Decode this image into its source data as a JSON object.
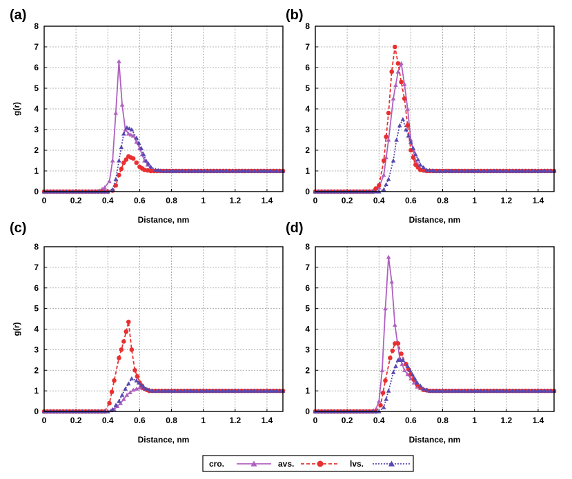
{
  "chart_data": [
    {
      "type": "line",
      "panel_label": "(a)",
      "xlabel": "Distance, nm",
      "ylabel": "g(r)",
      "xlim": [
        0,
        1.5
      ],
      "ylim": [
        0,
        8
      ],
      "xticks": [
        "0",
        "0.2",
        "0.4",
        "0.6",
        "0.8",
        "1",
        "1.2",
        "1.4"
      ],
      "yticks": [
        "0",
        "1",
        "2",
        "3",
        "4",
        "5",
        "6",
        "7",
        "8"
      ],
      "grid": true,
      "series": [
        {
          "name": "cro.",
          "color": "#b060c0",
          "marker": "triangle",
          "dash": "solid",
          "points": [
            [
              0,
              0
            ],
            [
              0.3,
              0
            ],
            [
              0.35,
              0.05
            ],
            [
              0.38,
              0.2
            ],
            [
              0.41,
              0.5
            ],
            [
              0.43,
              1.5
            ],
            [
              0.45,
              3.8
            ],
            [
              0.47,
              6.3
            ],
            [
              0.49,
              4.2
            ],
            [
              0.51,
              3.0
            ],
            [
              0.53,
              2.8
            ],
            [
              0.56,
              2.7
            ],
            [
              0.6,
              2.1
            ],
            [
              0.63,
              1.5
            ],
            [
              0.67,
              1.1
            ],
            [
              0.7,
              1.0
            ],
            [
              1.5,
              1.0
            ]
          ]
        },
        {
          "name": "avs.",
          "color": "#e83030",
          "marker": "circle",
          "dash": "dashed",
          "points": [
            [
              0,
              0
            ],
            [
              0.4,
              0
            ],
            [
              0.43,
              0.05
            ],
            [
              0.45,
              0.3
            ],
            [
              0.47,
              0.8
            ],
            [
              0.5,
              1.4
            ],
            [
              0.53,
              1.7
            ],
            [
              0.56,
              1.6
            ],
            [
              0.6,
              1.2
            ],
            [
              0.63,
              1.05
            ],
            [
              0.67,
              1.0
            ],
            [
              1.5,
              1.0
            ]
          ]
        },
        {
          "name": "lvs.",
          "color": "#5848b0",
          "marker": "triangle",
          "dash": "dotted",
          "points": [
            [
              0,
              0
            ],
            [
              0.4,
              0
            ],
            [
              0.43,
              0.1
            ],
            [
              0.45,
              0.6
            ],
            [
              0.47,
              1.5
            ],
            [
              0.5,
              2.8
            ],
            [
              0.52,
              3.1
            ],
            [
              0.55,
              3.0
            ],
            [
              0.58,
              2.6
            ],
            [
              0.61,
              2.1
            ],
            [
              0.64,
              1.5
            ],
            [
              0.67,
              1.2
            ],
            [
              0.7,
              1.05
            ],
            [
              0.75,
              1.0
            ],
            [
              1.5,
              1.0
            ]
          ]
        }
      ]
    },
    {
      "type": "line",
      "panel_label": "(b)",
      "xlabel": "Distance, nm",
      "ylabel": "",
      "xlim": [
        0,
        1.5
      ],
      "ylim": [
        0,
        8
      ],
      "xticks": [
        "0",
        "0.2",
        "0.4",
        "0.6",
        "0.8",
        "1",
        "1.2",
        "1.4"
      ],
      "yticks": [
        "0",
        "1",
        "2",
        "3",
        "4",
        "5",
        "6",
        "7",
        "8"
      ],
      "grid": true,
      "series": [
        {
          "name": "cro.",
          "color": "#b060c0",
          "marker": "triangle",
          "dash": "solid",
          "points": [
            [
              0,
              0
            ],
            [
              0.35,
              0
            ],
            [
              0.4,
              0.2
            ],
            [
              0.43,
              0.8
            ],
            [
              0.46,
              2.5
            ],
            [
              0.49,
              4.5
            ],
            [
              0.52,
              5.8
            ],
            [
              0.54,
              6.2
            ],
            [
              0.56,
              5.2
            ],
            [
              0.58,
              4.0
            ],
            [
              0.6,
              2.5
            ],
            [
              0.63,
              1.5
            ],
            [
              0.66,
              1.1
            ],
            [
              0.7,
              1.0
            ],
            [
              1.5,
              1.0
            ]
          ]
        },
        {
          "name": "avs.",
          "color": "#e83030",
          "marker": "circle",
          "dash": "dashed",
          "points": [
            [
              0,
              0
            ],
            [
              0.36,
              0
            ],
            [
              0.4,
              0.3
            ],
            [
              0.43,
              1.5
            ],
            [
              0.46,
              3.8
            ],
            [
              0.48,
              5.8
            ],
            [
              0.5,
              7.0
            ],
            [
              0.52,
              6.2
            ],
            [
              0.54,
              5.3
            ],
            [
              0.56,
              4.5
            ],
            [
              0.58,
              3.2
            ],
            [
              0.6,
              2.0
            ],
            [
              0.63,
              1.3
            ],
            [
              0.66,
              1.05
            ],
            [
              0.7,
              1.0
            ],
            [
              1.5,
              1.0
            ]
          ]
        },
        {
          "name": "lvs.",
          "color": "#5848b0",
          "marker": "triangle",
          "dash": "dotted",
          "points": [
            [
              0,
              0
            ],
            [
              0.4,
              0
            ],
            [
              0.43,
              0.1
            ],
            [
              0.46,
              0.6
            ],
            [
              0.49,
              1.5
            ],
            [
              0.51,
              2.5
            ],
            [
              0.53,
              3.2
            ],
            [
              0.55,
              3.5
            ],
            [
              0.57,
              3.0
            ],
            [
              0.6,
              2.4
            ],
            [
              0.63,
              1.8
            ],
            [
              0.66,
              1.3
            ],
            [
              0.7,
              1.05
            ],
            [
              0.75,
              1.0
            ],
            [
              1.5,
              1.0
            ]
          ]
        }
      ]
    },
    {
      "type": "line",
      "panel_label": "(c)",
      "xlabel": "Distance, nm",
      "ylabel": "g(r)",
      "xlim": [
        0,
        1.5
      ],
      "ylim": [
        0,
        8
      ],
      "xticks": [
        "0",
        "0.2",
        "0.4",
        "0.6",
        "0.8",
        "1",
        "1.2",
        "1.4"
      ],
      "yticks": [
        "0",
        "1",
        "2",
        "3",
        "4",
        "5",
        "6",
        "7",
        "8"
      ],
      "grid": true,
      "series": [
        {
          "name": "cro.",
          "color": "#b060c0",
          "marker": "triangle",
          "dash": "solid",
          "points": [
            [
              0,
              0
            ],
            [
              0.4,
              0
            ],
            [
              0.44,
              0.1
            ],
            [
              0.48,
              0.4
            ],
            [
              0.52,
              0.8
            ],
            [
              0.56,
              1.05
            ],
            [
              0.6,
              1.15
            ],
            [
              0.64,
              1.1
            ],
            [
              0.68,
              1.0
            ],
            [
              1.5,
              1.0
            ]
          ]
        },
        {
          "name": "avs.",
          "color": "#e83030",
          "marker": "circle",
          "dash": "dashed",
          "points": [
            [
              0,
              0
            ],
            [
              0.38,
              0
            ],
            [
              0.41,
              0.4
            ],
            [
              0.44,
              1.5
            ],
            [
              0.47,
              2.6
            ],
            [
              0.5,
              3.4
            ],
            [
              0.53,
              4.35
            ],
            [
              0.55,
              3.0
            ],
            [
              0.57,
              2.0
            ],
            [
              0.6,
              1.4
            ],
            [
              0.63,
              1.1
            ],
            [
              0.66,
              1.0
            ],
            [
              1.5,
              1.0
            ]
          ]
        },
        {
          "name": "lvs.",
          "color": "#5848b0",
          "marker": "triangle",
          "dash": "dotted",
          "points": [
            [
              0,
              0
            ],
            [
              0.4,
              0
            ],
            [
              0.43,
              0.1
            ],
            [
              0.47,
              0.5
            ],
            [
              0.51,
              1.1
            ],
            [
              0.55,
              1.6
            ],
            [
              0.58,
              1.5
            ],
            [
              0.61,
              1.3
            ],
            [
              0.64,
              1.1
            ],
            [
              0.68,
              1.0
            ],
            [
              1.5,
              1.0
            ]
          ]
        }
      ]
    },
    {
      "type": "line",
      "panel_label": "(d)",
      "xlabel": "Distance, nm",
      "ylabel": "",
      "xlim": [
        0,
        1.5
      ],
      "ylim": [
        0,
        8
      ],
      "xticks": [
        "0",
        "0.2",
        "0.4",
        "0.6",
        "0.8",
        "1",
        "1.2",
        "1.4"
      ],
      "yticks": [
        "0",
        "1",
        "2",
        "3",
        "4",
        "5",
        "6",
        "7",
        "8"
      ],
      "grid": true,
      "series": [
        {
          "name": "cro.",
          "color": "#b060c0",
          "marker": "triangle",
          "dash": "solid",
          "points": [
            [
              0,
              0
            ],
            [
              0.35,
              0
            ],
            [
              0.38,
              0.1
            ],
            [
              0.4,
              0.5
            ],
            [
              0.42,
              2.0
            ],
            [
              0.44,
              5.0
            ],
            [
              0.46,
              7.5
            ],
            [
              0.48,
              6.3
            ],
            [
              0.5,
              4.2
            ],
            [
              0.53,
              2.6
            ],
            [
              0.56,
              2.0
            ],
            [
              0.6,
              1.6
            ],
            [
              0.64,
              1.2
            ],
            [
              0.68,
              1.05
            ],
            [
              0.72,
              1.0
            ],
            [
              1.5,
              1.0
            ]
          ]
        },
        {
          "name": "avs.",
          "color": "#e83030",
          "marker": "circle",
          "dash": "dashed",
          "points": [
            [
              0,
              0
            ],
            [
              0.38,
              0
            ],
            [
              0.41,
              0.3
            ],
            [
              0.44,
              1.5
            ],
            [
              0.47,
              2.6
            ],
            [
              0.5,
              3.3
            ],
            [
              0.52,
              3.3
            ],
            [
              0.54,
              2.8
            ],
            [
              0.57,
              2.3
            ],
            [
              0.6,
              1.8
            ],
            [
              0.64,
              1.3
            ],
            [
              0.68,
              1.05
            ],
            [
              0.72,
              1.0
            ],
            [
              1.5,
              1.0
            ]
          ]
        },
        {
          "name": "lvs.",
          "color": "#5848b0",
          "marker": "triangle",
          "dash": "dotted",
          "points": [
            [
              0,
              0
            ],
            [
              0.4,
              0
            ],
            [
              0.43,
              0.2
            ],
            [
              0.46,
              1.0
            ],
            [
              0.49,
              1.9
            ],
            [
              0.52,
              2.5
            ],
            [
              0.55,
              2.5
            ],
            [
              0.58,
              2.2
            ],
            [
              0.61,
              1.8
            ],
            [
              0.64,
              1.4
            ],
            [
              0.68,
              1.1
            ],
            [
              0.72,
              1.0
            ],
            [
              1.5,
              1.0
            ]
          ]
        }
      ]
    }
  ],
  "legend": {
    "placement": "bottom-center",
    "items": [
      {
        "label": "cro.",
        "color": "#b060c0",
        "marker": "triangle",
        "dash": "solid"
      },
      {
        "label": "avs.",
        "color": "#e83030",
        "marker": "circle",
        "dash": "dashed"
      },
      {
        "label": "lvs.",
        "color": "#5848b0",
        "marker": "triangle",
        "dash": "dotted"
      }
    ]
  }
}
